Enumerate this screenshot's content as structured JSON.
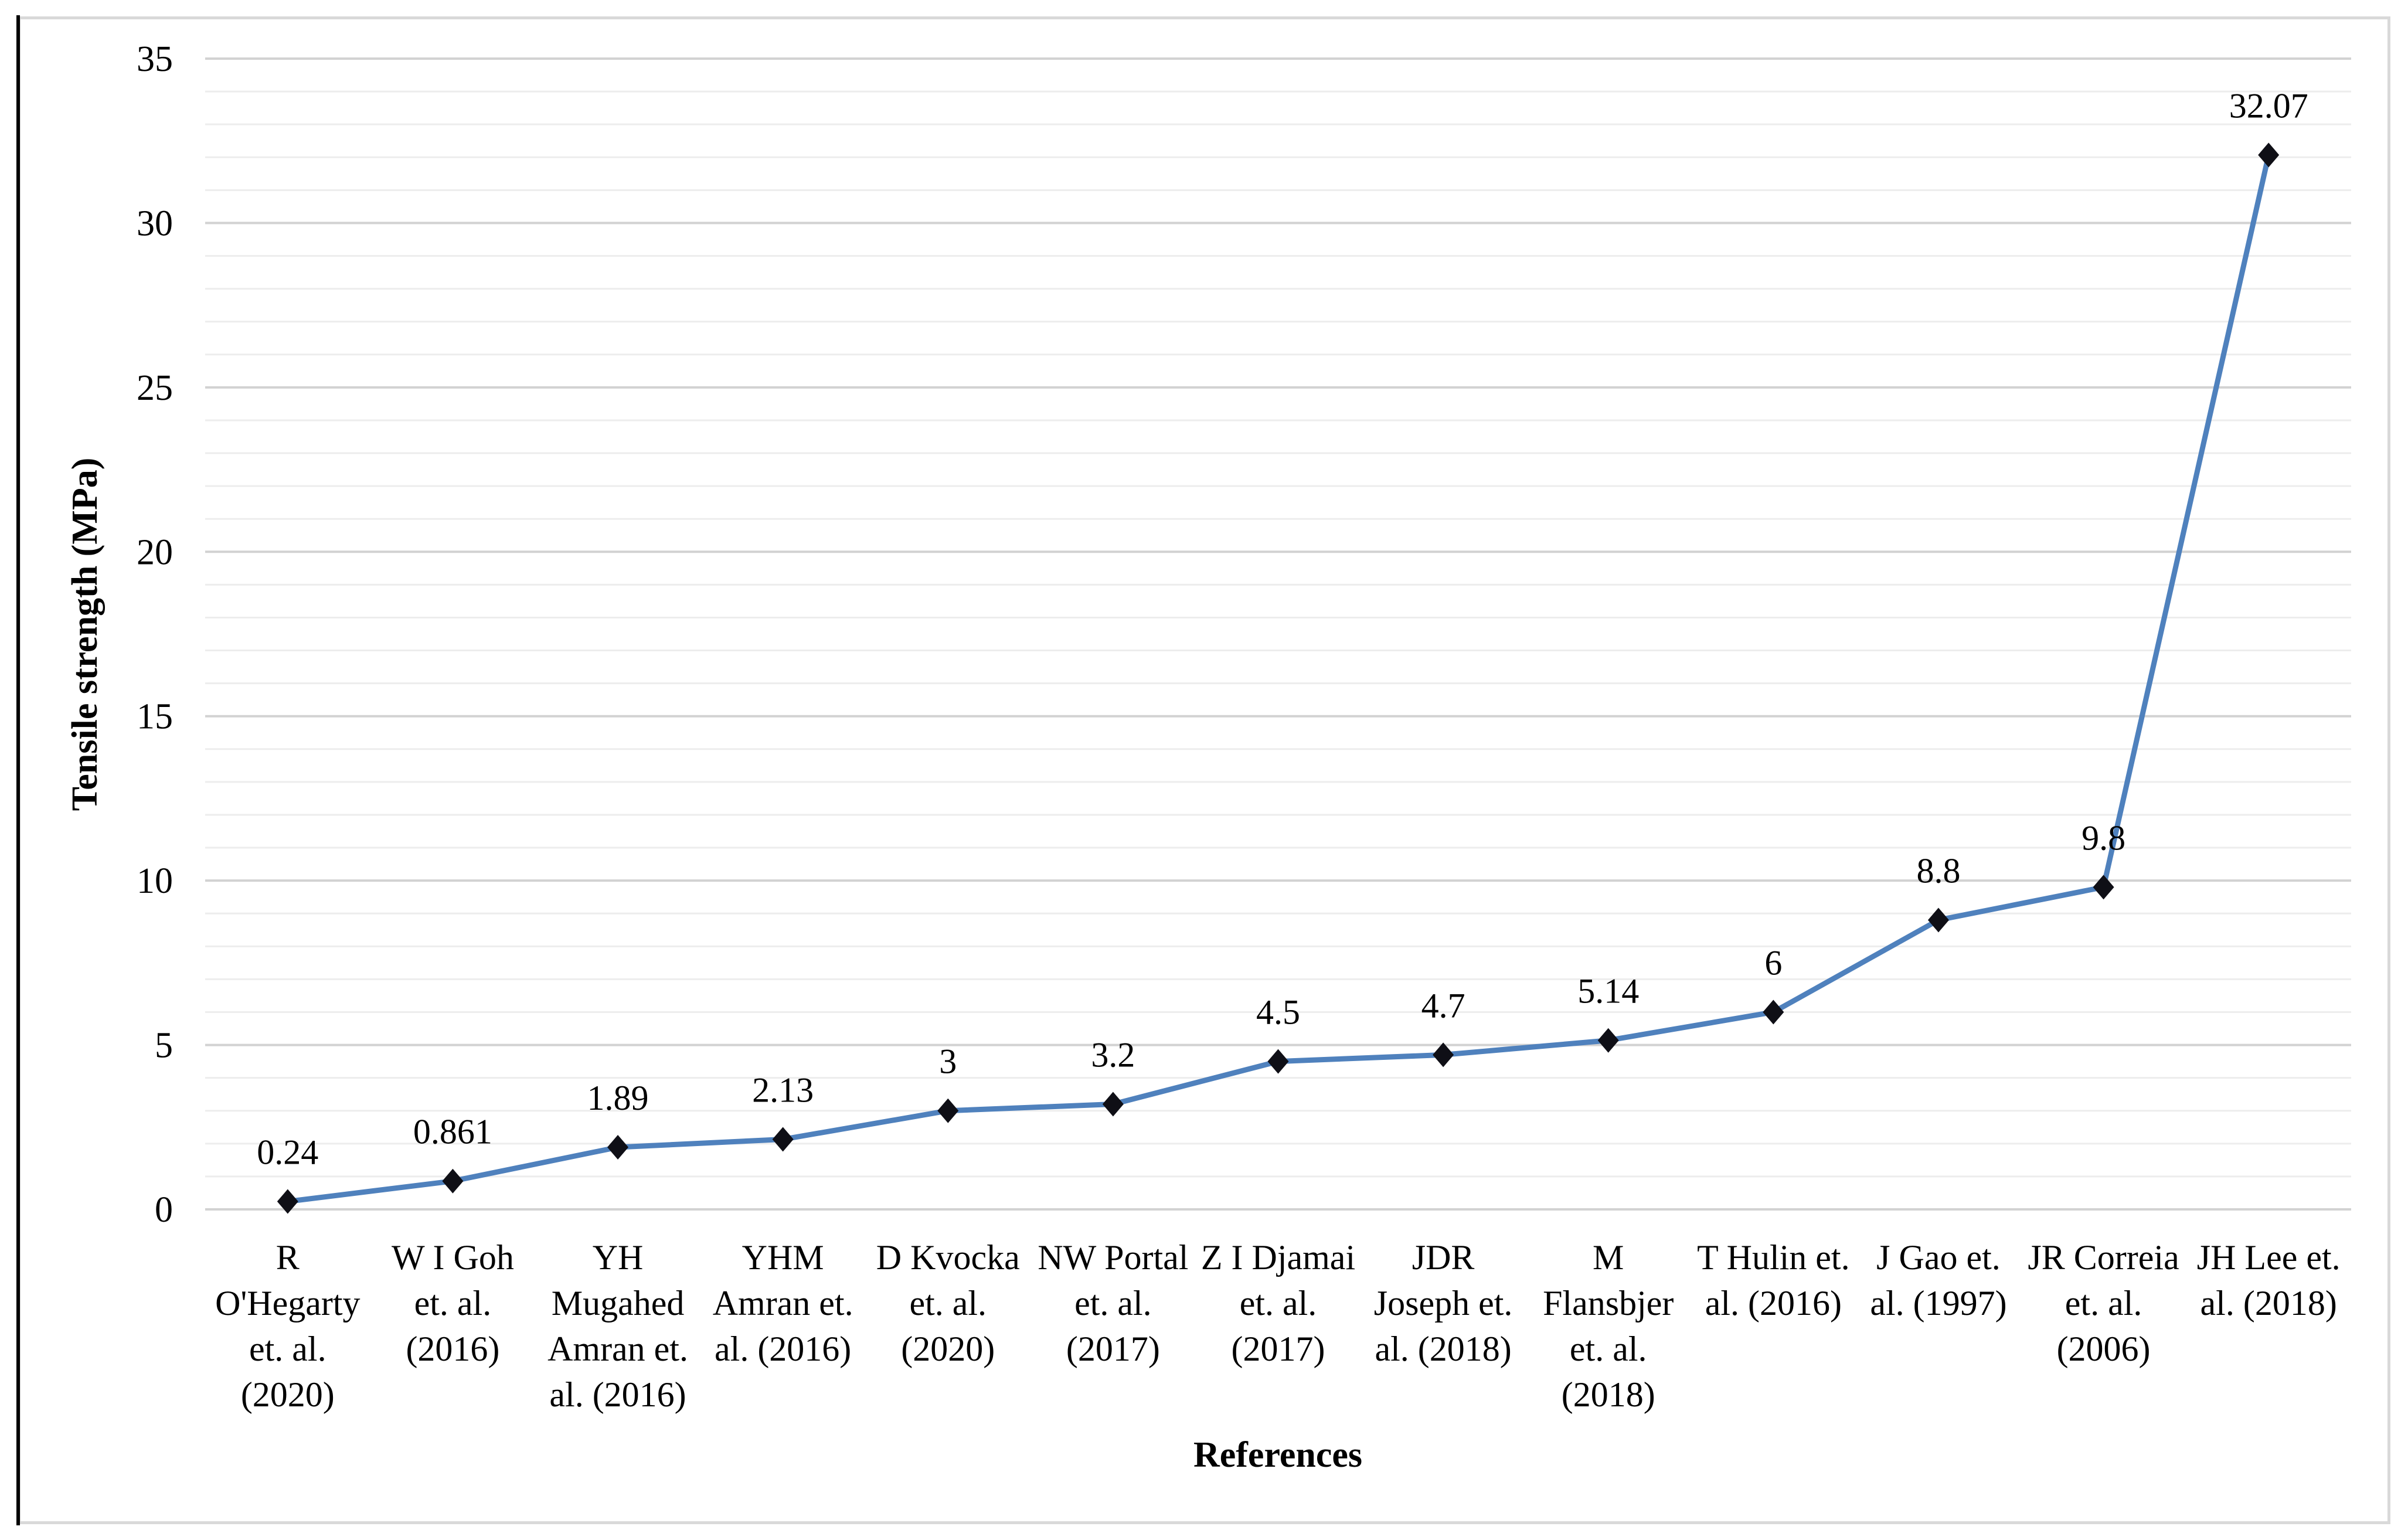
{
  "chart_data": {
    "type": "line",
    "title": "",
    "xlabel": "References",
    "ylabel": "Tensile strength (MPa)",
    "ylim": [
      0,
      35
    ],
    "y_major_ticks": [
      0,
      5,
      10,
      15,
      20,
      25,
      30,
      35
    ],
    "y_minor_step": 1,
    "grid": "major and minor horizontal gridlines, no vertical gridlines",
    "legend_position": "none",
    "marker": "diamond",
    "categories": [
      "R O'Hegarty et. al. (2020)",
      "W I Goh et. al. (2016)",
      "YH Mugahed Amran et. al. (2016)",
      "YHM Amran et. al. (2016)",
      "D Kvocka et. al. (2020)",
      "NW Portal et. al. (2017)",
      "Z I Djamai et. al. (2017)",
      "JDR Joseph et. al. (2018)",
      "M Flansbjer et. al. (2018)",
      "T Hulin et. al. (2016)",
      "J Gao et. al. (1997)",
      "JR Correia et. al. (2006)",
      "JH Lee et. al. (2018)"
    ],
    "category_lines": [
      [
        "R",
        "O'Hegarty",
        "et. al.",
        "(2020)"
      ],
      [
        "W I Goh",
        "et. al.",
        "(2016)"
      ],
      [
        "YH",
        "Mugahed",
        "Amran et.",
        "al. (2016)"
      ],
      [
        "YHM",
        "Amran et.",
        "al. (2016)"
      ],
      [
        "D Kvocka",
        "et. al.",
        "(2020)"
      ],
      [
        "NW Portal",
        "et. al.",
        "(2017)"
      ],
      [
        "Z I Djamai",
        "et. al.",
        "(2017)"
      ],
      [
        "JDR",
        "Joseph et.",
        "al. (2018)"
      ],
      [
        "M",
        "Flansbjer",
        "et. al.",
        "(2018)"
      ],
      [
        "T Hulin et.",
        "al. (2016)"
      ],
      [
        "J Gao et.",
        "al. (1997)"
      ],
      [
        "JR Correia",
        "et. al.",
        "(2006)"
      ],
      [
        "JH Lee et.",
        "al. (2018)"
      ]
    ],
    "values": [
      0.24,
      0.861,
      1.89,
      2.13,
      3,
      3.2,
      4.5,
      4.7,
      5.14,
      6,
      8.8,
      9.8,
      32.07
    ],
    "point_labels": [
      "0.24",
      "0.861",
      "1.89",
      "2.13",
      "3",
      "3.2",
      "4.5",
      "4.7",
      "5.14",
      "6",
      "8.8",
      "9.8",
      "32.07"
    ],
    "colors": {
      "series_line": "#4f81bd",
      "marker_fill": "#0f0f16",
      "grid_major": "#d2d2d2",
      "grid_minor": "#ededed",
      "frame_border": "#d9d9d9",
      "left_rule": "#000000",
      "text": "#000000"
    }
  }
}
